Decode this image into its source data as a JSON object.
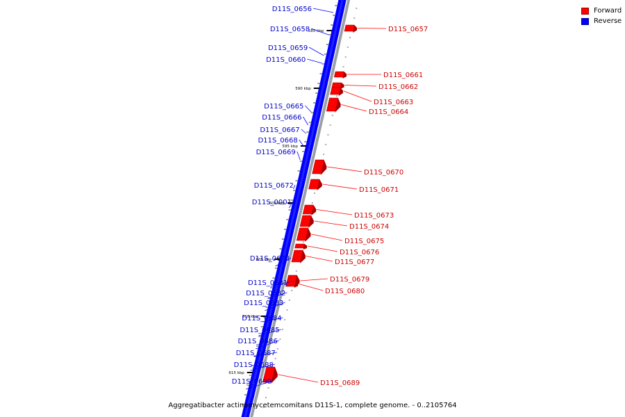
{
  "legend": {
    "items": [
      {
        "label": "Forward",
        "color": "#ff0000"
      },
      {
        "label": "Reverse",
        "color": "#0000ff"
      }
    ]
  },
  "caption": "Aggregatibacter actinomycetemcomitans D11S-1, complete genome. - 0..2105764",
  "colors": {
    "forward": "#ff0000",
    "reverse": "#0000ff",
    "label_forward": "#cc0000",
    "label_reverse": "#0000cc",
    "backbone": "#9aa0a6"
  },
  "tick_labels": [
    "585 kbp",
    "590 kbp",
    "595 kbp",
    "600 kbp",
    "605 kbp",
    "610 kbp",
    "615 kbp"
  ],
  "reverse_genes": [
    "D11S_0656",
    "D11S_0658",
    "D11S_0659",
    "D11S_0660",
    "D11S_0665",
    "D11S_0666",
    "D11S_0667",
    "D11S_0668",
    "D11S_0669",
    "D11S_0672",
    "D11S_0001",
    "D11S_0678",
    "D11S_0681",
    "D11S_0682",
    "D11S_0683",
    "D11S_0684",
    "D11S_0685",
    "D11S_0686",
    "D11S_0687",
    "D11S_0688",
    "D11S_0690"
  ],
  "forward_genes": [
    "D11S_0657",
    "D11S_0661",
    "D11S_0662",
    "D11S_0663",
    "D11S_0664",
    "D11S_0670",
    "D11S_0671",
    "D11S_0673",
    "D11S_0674",
    "D11S_0675",
    "D11S_0676",
    "D11S_0677",
    "D11S_0679",
    "D11S_0680",
    "D11S_0689"
  ]
}
